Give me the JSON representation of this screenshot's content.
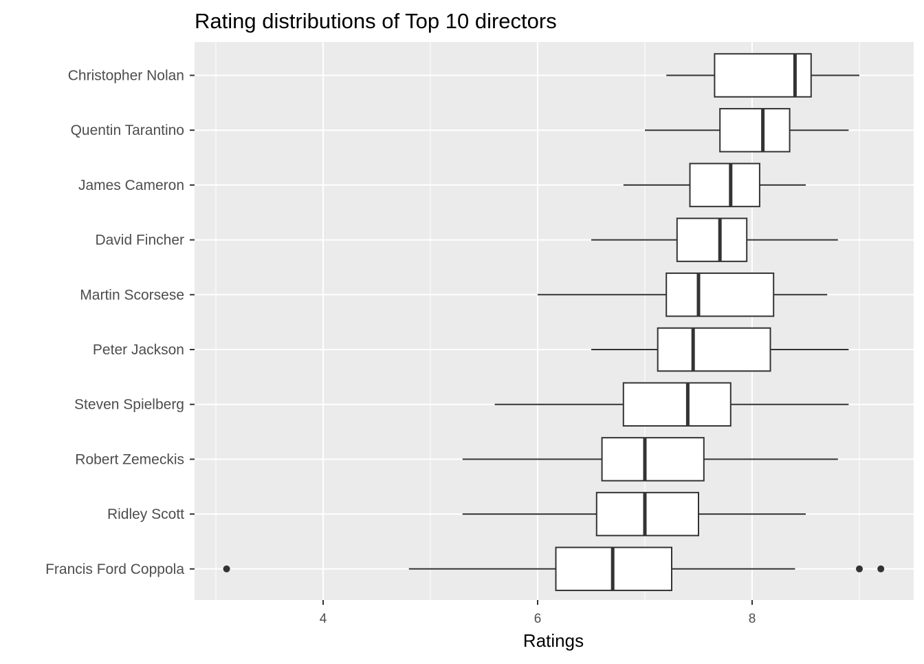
{
  "chart_data": {
    "type": "boxplot",
    "title": "Rating distributions of Top 10 directors",
    "xlabel": "Ratings",
    "ylabel": "",
    "xlim": [
      2.8,
      9.6
    ],
    "x_ticks": [
      4,
      6,
      8
    ],
    "x_tick_labels": [
      "4",
      "6",
      "8"
    ],
    "x_minor_ticks": [
      3,
      5,
      7,
      9
    ],
    "grid": true,
    "colors": {
      "panel": "#ebebeb",
      "grid": "#ffffff",
      "box_fill": "#ffffff",
      "stroke": "#333333"
    },
    "categories": [
      "Christopher Nolan",
      "Quentin Tarantino",
      "James Cameron",
      "David Fincher",
      "Martin Scorsese",
      "Peter Jackson",
      "Steven Spielberg",
      "Robert Zemeckis",
      "Ridley Scott",
      "Francis Ford Coppola"
    ],
    "boxes": [
      {
        "name": "Christopher Nolan",
        "whisker_low": 7.2,
        "q1": 7.65,
        "median": 8.4,
        "q3": 8.55,
        "whisker_high": 9.0,
        "outliers": []
      },
      {
        "name": "Quentin Tarantino",
        "whisker_low": 7.0,
        "q1": 7.7,
        "median": 8.1,
        "q3": 8.35,
        "whisker_high": 8.9,
        "outliers": []
      },
      {
        "name": "James Cameron",
        "whisker_low": 6.8,
        "q1": 7.42,
        "median": 7.8,
        "q3": 8.07,
        "whisker_high": 8.5,
        "outliers": []
      },
      {
        "name": "David Fincher",
        "whisker_low": 6.5,
        "q1": 7.3,
        "median": 7.7,
        "q3": 7.95,
        "whisker_high": 8.8,
        "outliers": []
      },
      {
        "name": "Martin Scorsese",
        "whisker_low": 6.0,
        "q1": 7.2,
        "median": 7.5,
        "q3": 8.2,
        "whisker_high": 8.7,
        "outliers": []
      },
      {
        "name": "Peter Jackson",
        "whisker_low": 6.5,
        "q1": 7.12,
        "median": 7.45,
        "q3": 8.17,
        "whisker_high": 8.9,
        "outliers": []
      },
      {
        "name": "Steven Spielberg",
        "whisker_low": 5.6,
        "q1": 6.8,
        "median": 7.4,
        "q3": 7.8,
        "whisker_high": 8.9,
        "outliers": []
      },
      {
        "name": "Robert Zemeckis",
        "whisker_low": 5.3,
        "q1": 6.6,
        "median": 7.0,
        "q3": 7.55,
        "whisker_high": 8.8,
        "outliers": []
      },
      {
        "name": "Ridley Scott",
        "whisker_low": 5.3,
        "q1": 6.55,
        "median": 7.0,
        "q3": 7.5,
        "whisker_high": 8.5,
        "outliers": []
      },
      {
        "name": "Francis Ford Coppola",
        "whisker_low": 4.8,
        "q1": 6.17,
        "median": 6.7,
        "q3": 7.25,
        "whisker_high": 8.4,
        "outliers": [
          3.1,
          9.0,
          9.2
        ]
      }
    ]
  }
}
